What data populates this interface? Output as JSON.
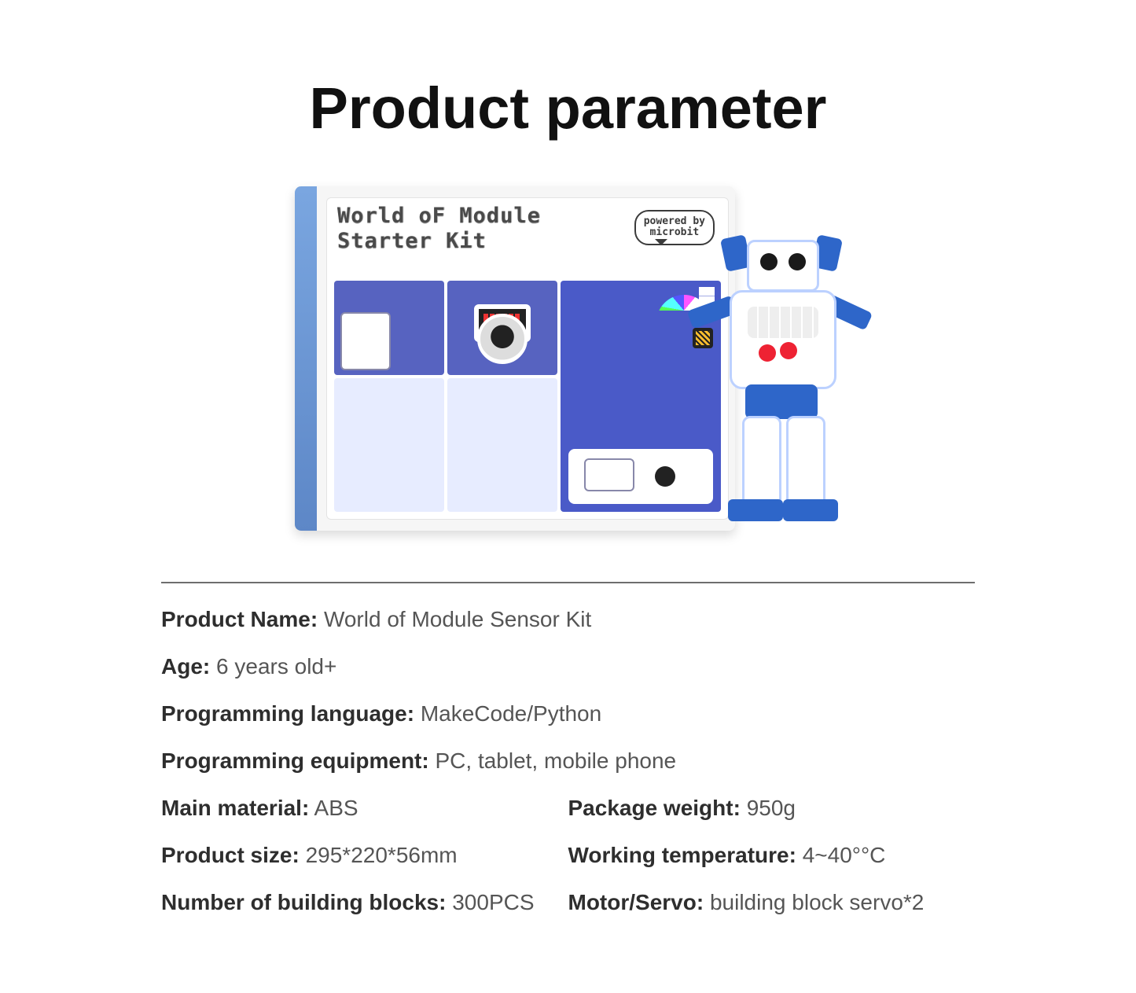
{
  "title": "Product parameter",
  "box": {
    "title_line1": "World oF Module",
    "title_line2": "Starter Kit",
    "bubble_line1": "powered by",
    "bubble_line2": "microbit"
  },
  "specs": {
    "product_name": {
      "label": "Product Name:",
      "value": "World of Module Sensor Kit"
    },
    "age": {
      "label": "Age:",
      "value": "6 years old+"
    },
    "prog_lang": {
      "label": "Programming language:",
      "value": "MakeCode/Python"
    },
    "prog_equip": {
      "label": "Programming equipment:",
      "value": "PC, tablet, mobile phone"
    },
    "main_material": {
      "label": "Main material:",
      "value": "ABS"
    },
    "package_weight": {
      "label": "Package weight:",
      "value": "950g"
    },
    "product_size": {
      "label": "Product size:",
      "value": "295*220*56mm"
    },
    "working_temp": {
      "label": "Working temperature:",
      "value": "4~40°°C"
    },
    "num_blocks": {
      "label": "Number of building blocks:",
      "value": "300PCS"
    },
    "motor_servo": {
      "label": "Motor/Servo:",
      "value": "building block servo*2"
    }
  },
  "style": {
    "title_color": "#111111",
    "title_fontsize": 74,
    "rule_color": "#6e6e6e",
    "label_color": "#2e2e2e",
    "value_color": "#555555",
    "spec_fontsize": 28,
    "background": "#ffffff",
    "box_panel_colors": [
      "#5763c0",
      "#4a5ac8",
      "#e7ecff"
    ],
    "robot_accent": "#2e66c9",
    "robot_body": "#ffffff"
  }
}
